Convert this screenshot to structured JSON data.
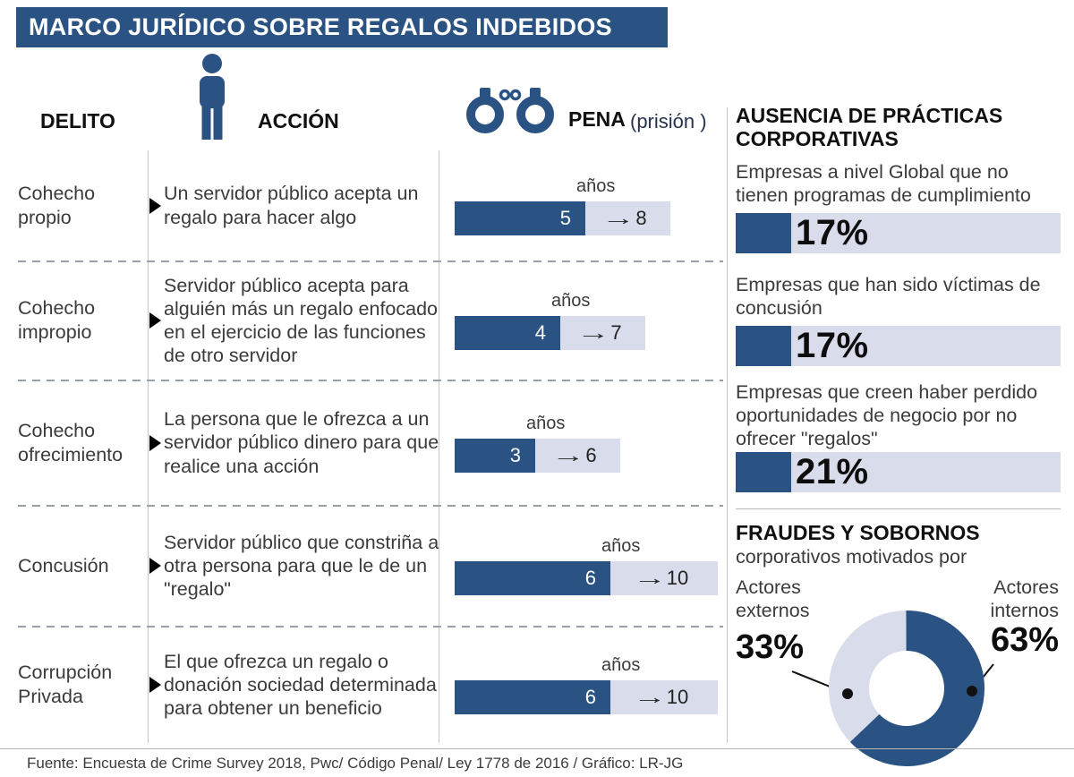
{
  "header": {
    "title": "MARCO JURÍDICO SOBRE REGALOS INDEBIDOS"
  },
  "table": {
    "col_delito": "DELITO",
    "col_accion": "ACCIÓN",
    "col_pena": "PENA",
    "col_pena_note": "(prisión )"
  },
  "rows": [
    {
      "delito": "Cohecho propio",
      "accion": "Un servidor público acepta un regalo para hacer algo",
      "years_label": "años",
      "min_years": 5,
      "max_years": 8
    },
    {
      "delito": "Cohecho impropio",
      "accion": "Servidor público acepta para alguién más un regalo enfocado en el ejercicio de las funciones de otro servidor",
      "years_label": "años",
      "min_years": 4,
      "max_years": 7
    },
    {
      "delito": "Cohecho ofrecimiento",
      "accion": "La persona que le ofrezca a un servidor público dinero para que realice una acción",
      "years_label": "años",
      "min_years": 3,
      "max_years": 6
    },
    {
      "delito": "Concusión",
      "accion": "Servidor público que constriña a otra persona para que le de un \"regalo\"",
      "years_label": "años",
      "min_years": 6,
      "max_years": 10
    },
    {
      "delito": "Corrupción Privada",
      "accion": "El que ofrezca un regalo o donación sociedad determinada para obtener un beneficio",
      "years_label": "años",
      "min_years": 6,
      "max_years": 10
    }
  ],
  "right_panel": {
    "title": "AUSENCIA DE PRÁCTICAS CORPORATIVAS",
    "stats": [
      {
        "text": "Empresas a nivel Global que no tienen programas de cumplimiento",
        "value": "17%"
      },
      {
        "text": "Empresas que han sido víctimas de concusión",
        "value": "17%"
      },
      {
        "text": "Empresas que creen haber perdido oportunidades de negocio por no ofrecer \"regalos\"",
        "value": "21%"
      }
    ],
    "fraud": {
      "title": "FRAUDES Y SOBORNOS",
      "subtitle": "corporativos motivados por",
      "external_label": "Actores externos",
      "external_value": "33%",
      "internal_label": "Actores internos",
      "internal_value": "63%"
    }
  },
  "icons": {
    "range_arrow": "→"
  },
  "footer": "Fuente: Encuesta de Crime Survey 2018, Pwc/ Código Penal/ Ley 1778 de 2016 / Gráfico: LR-JG",
  "colors": {
    "navy": "#2a5384",
    "light": "#d9dcea"
  },
  "chart_data": [
    {
      "type": "bar",
      "title": "PENA (prisión) en años",
      "categories": [
        "Cohecho propio",
        "Cohecho impropio",
        "Cohecho ofrecimiento",
        "Concusión",
        "Corrupción Privada"
      ],
      "series": [
        {
          "name": "años mínimo",
          "values": [
            5,
            4,
            3,
            6,
            6
          ]
        },
        {
          "name": "años máximo",
          "values": [
            8,
            7,
            6,
            10,
            10
          ]
        }
      ],
      "xlabel": "DELITO",
      "ylabel": "años",
      "unit": "años"
    },
    {
      "type": "bar",
      "title": "AUSENCIA DE PRÁCTICAS CORPORATIVAS",
      "categories": [
        "Empresas a nivel Global que no tienen programas de cumplimiento",
        "Empresas que han sido víctimas de concusión",
        "Empresas que creen haber perdido oportunidades de negocio por no ofrecer \"regalos\""
      ],
      "values": [
        17,
        17,
        21
      ],
      "unit": "%"
    },
    {
      "type": "pie",
      "title": "FRAUDES Y SOBORNOS corporativos motivados por",
      "categories": [
        "Actores internos",
        "Actores externos"
      ],
      "values": [
        63,
        33
      ],
      "unit": "%",
      "legend_position": "sides"
    }
  ]
}
